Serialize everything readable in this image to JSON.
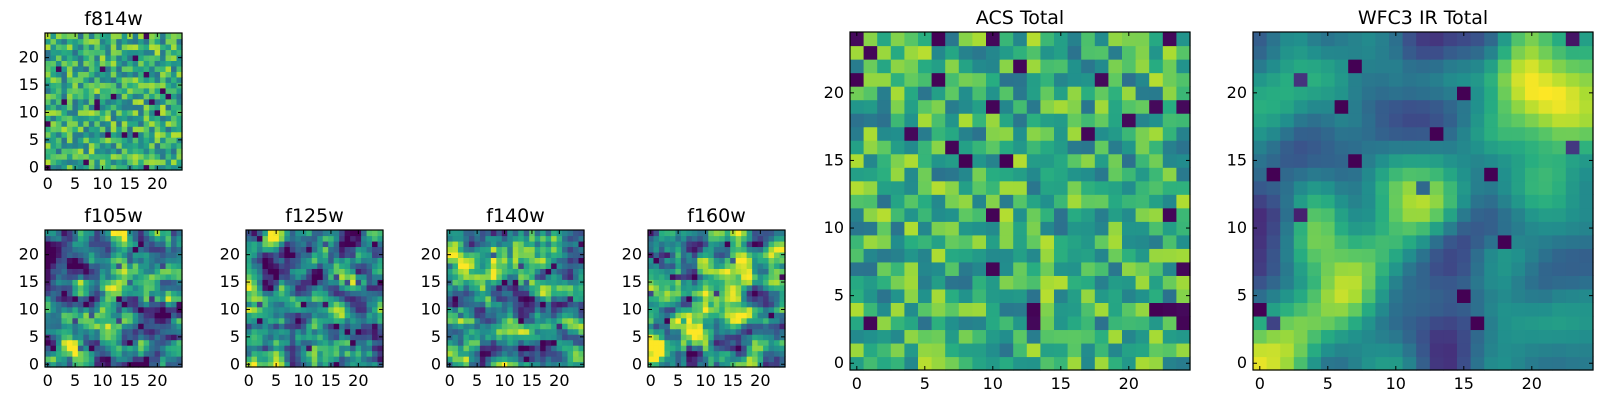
{
  "chart_data": [
    {
      "type": "heatmap",
      "title": "f814w",
      "grid_size": [
        25,
        25
      ],
      "xlim": [
        0,
        24
      ],
      "ylim": [
        0,
        24
      ],
      "xticks": [
        0,
        5,
        10,
        15,
        20
      ],
      "yticks": [
        0,
        5,
        10,
        15,
        20
      ],
      "colormap": "viridis",
      "pattern": "noisy",
      "seed": 814
    },
    {
      "type": "heatmap",
      "title": "f105w",
      "grid_size": [
        25,
        25
      ],
      "xlim": [
        0,
        24
      ],
      "ylim": [
        0,
        24
      ],
      "xticks": [
        0,
        5,
        10,
        15,
        20
      ],
      "yticks": [
        0,
        5,
        10,
        15,
        20
      ],
      "colormap": "viridis",
      "pattern": "diagonal",
      "seed": 105
    },
    {
      "type": "heatmap",
      "title": "f125w",
      "grid_size": [
        25,
        25
      ],
      "xlim": [
        0,
        24
      ],
      "ylim": [
        0,
        24
      ],
      "xticks": [
        0,
        5,
        10,
        15,
        20
      ],
      "yticks": [
        0,
        5,
        10,
        15,
        20
      ],
      "colormap": "viridis",
      "pattern": "blobby",
      "seed": 125
    },
    {
      "type": "heatmap",
      "title": "f140w",
      "grid_size": [
        25,
        25
      ],
      "xlim": [
        0,
        24
      ],
      "ylim": [
        0,
        24
      ],
      "xticks": [
        0,
        5,
        10,
        15,
        20
      ],
      "yticks": [
        0,
        5,
        10,
        15,
        20
      ],
      "colormap": "viridis",
      "pattern": "blobby",
      "seed": 140
    },
    {
      "type": "heatmap",
      "title": "f160w",
      "grid_size": [
        25,
        25
      ],
      "xlim": [
        0,
        24
      ],
      "ylim": [
        0,
        24
      ],
      "xticks": [
        0,
        5,
        10,
        15,
        20
      ],
      "yticks": [
        0,
        5,
        10,
        15,
        20
      ],
      "colormap": "viridis",
      "pattern": "diagonal",
      "seed": 160
    },
    {
      "type": "heatmap",
      "title": "ACS Total",
      "grid_size": [
        25,
        25
      ],
      "xlim": [
        0,
        24
      ],
      "ylim": [
        0,
        24
      ],
      "xticks": [
        0,
        5,
        10,
        15,
        20
      ],
      "yticks": [
        0,
        5,
        10,
        15,
        20
      ],
      "colormap": "viridis",
      "pattern": "noisy",
      "seed": 7
    },
    {
      "type": "heatmap",
      "title": "WFC3 IR Total",
      "grid_size": [
        25,
        25
      ],
      "xlim": [
        0,
        24
      ],
      "ylim": [
        0,
        24
      ],
      "xticks": [
        0,
        5,
        10,
        15,
        20
      ],
      "yticks": [
        0,
        5,
        10,
        15,
        20
      ],
      "colormap": "viridis",
      "pattern": "smooth-diagonal",
      "seed": 3
    }
  ]
}
